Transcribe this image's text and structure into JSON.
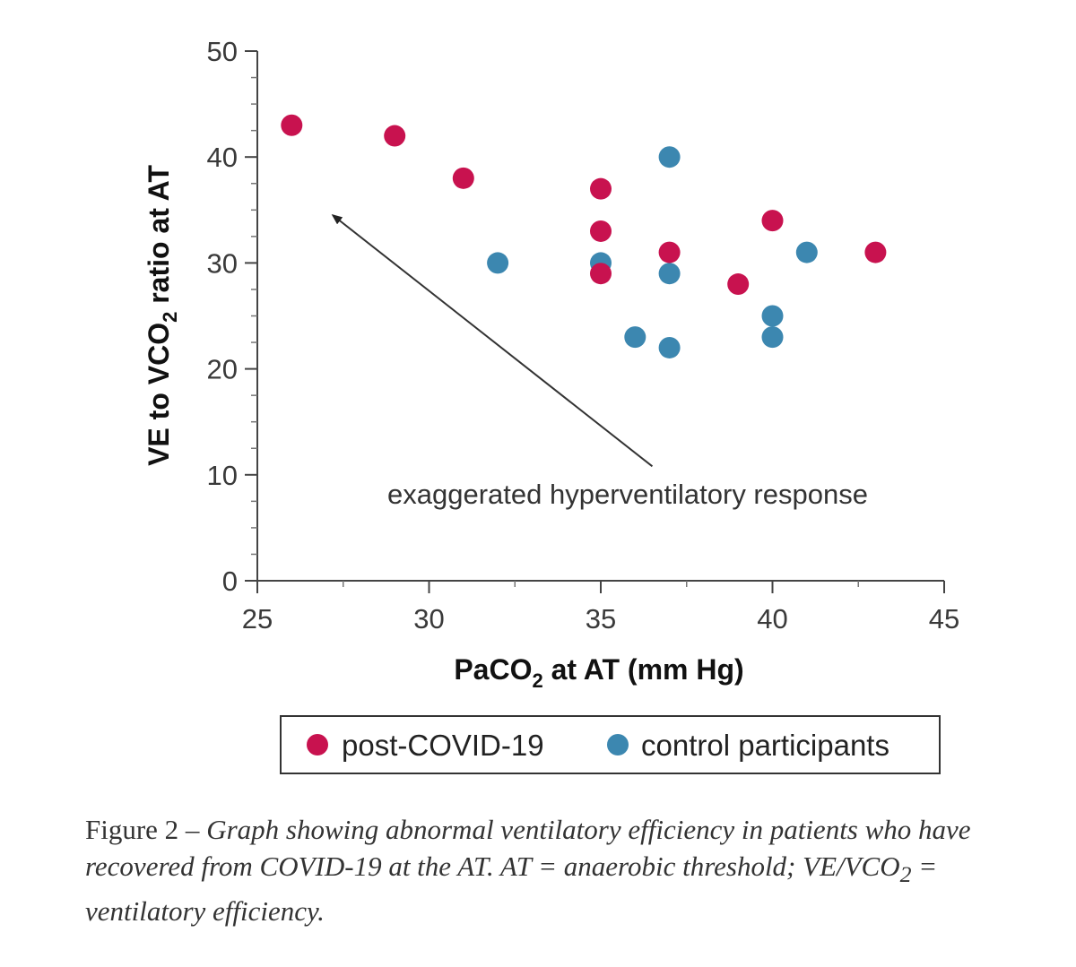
{
  "chart_data": {
    "type": "scatter",
    "xlabel_parts": [
      "PaCO",
      "2",
      " at AT (mm Hg)"
    ],
    "ylabel_parts": [
      "VE to VCO",
      "2",
      " ratio at AT"
    ],
    "xlim": [
      25,
      45
    ],
    "ylim": [
      0,
      50
    ],
    "xticks": [
      25,
      30,
      35,
      40,
      45
    ],
    "yticks": [
      0,
      10,
      20,
      30,
      40,
      50
    ],
    "grid": false,
    "legend_position": "bottom",
    "series": [
      {
        "name": "post-COVID-19",
        "color": "#c8124f",
        "x": [
          26,
          29,
          31,
          35,
          35,
          35,
          37,
          39,
          40,
          43
        ],
        "y": [
          43,
          42,
          38,
          37,
          33,
          29,
          31,
          28,
          34,
          31
        ]
      },
      {
        "name": "control participants",
        "color": "#3c87b0",
        "x": [
          32,
          35,
          36,
          37,
          37,
          37,
          40,
          40,
          41
        ],
        "y": [
          30,
          30,
          23,
          40,
          29,
          22,
          25,
          23,
          31
        ]
      }
    ],
    "annotation": {
      "text": "exaggerated hyperventilatory response",
      "arrow_from": [
        36.5,
        10.8
      ],
      "arrow_to": [
        27.2,
        34.5
      ]
    }
  },
  "caption": {
    "label": "Figure 2 – ",
    "text_part1": "Graph showing abnormal ventilatory efficiency in patients who have recovered from COVID-19 at the AT. AT = anaerobic threshold; VE/VCO",
    "subscript": "2",
    "text_part2": " = ventilatory efficiency."
  }
}
